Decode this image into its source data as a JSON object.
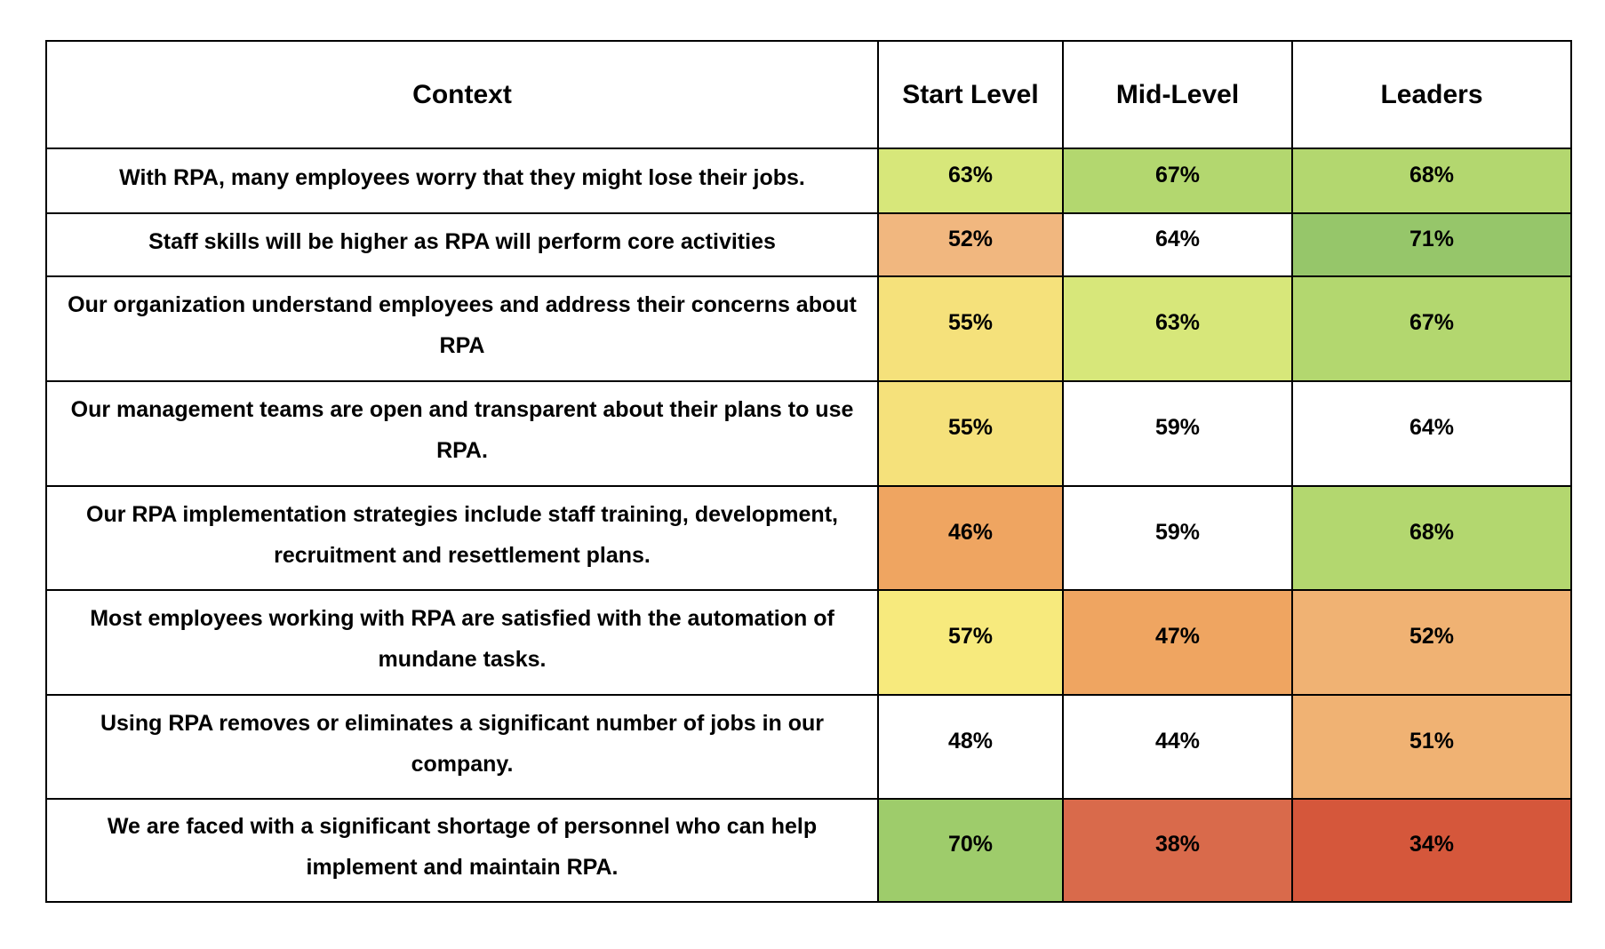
{
  "table": {
    "headers": [
      "Context",
      "Start Level",
      "Mid-Level",
      "Leaders"
    ],
    "rows": [
      {
        "context": "With RPA, many employees worry that they might lose their jobs.",
        "values": [
          "63%",
          "67%",
          "68%"
        ],
        "colors": [
          "#d7e77a",
          "#b3d76f",
          "#b3d76f"
        ]
      },
      {
        "context": "Staff skills will be higher as RPA will perform core activities",
        "values": [
          "52%",
          "64%",
          "71%"
        ],
        "colors": [
          "#f1b77f",
          "#ffffff",
          "#96c66a"
        ]
      },
      {
        "context": "Our organization understand employees and address their concerns about RPA",
        "values": [
          "55%",
          "63%",
          "67%"
        ],
        "colors": [
          "#f5e17b",
          "#d7e77a",
          "#b3d76f"
        ]
      },
      {
        "context": "Our management teams are open and transparent about their plans to use RPA.",
        "values": [
          "55%",
          "59%",
          "64%"
        ],
        "colors": [
          "#f5e17b",
          "#ffffff",
          "#ffffff"
        ]
      },
      {
        "context": "Our RPA implementation strategies include staff training, development, recruitment and resettlement plans.",
        "values": [
          "46%",
          "59%",
          "68%"
        ],
        "colors": [
          "#efa561",
          "#ffffff",
          "#b3d76f"
        ]
      },
      {
        "context": "Most employees working with RPA are satisfied with the automation of mundane tasks.",
        "values": [
          "57%",
          "47%",
          "52%"
        ],
        "colors": [
          "#f7ea7d",
          "#efa561",
          "#f0b273"
        ]
      },
      {
        "context": "Using RPA removes or eliminates a significant number of jobs in our company.",
        "values": [
          "48%",
          "44%",
          "51%"
        ],
        "colors": [
          "#ffffff",
          "#ffffff",
          "#f0b273"
        ]
      },
      {
        "context": "We are faced with a significant shortage of personnel who can help implement and maintain RPA.",
        "values": [
          "70%",
          "38%",
          "34%"
        ],
        "colors": [
          "#9ecc6b",
          "#d96a4b",
          "#d5573b"
        ]
      }
    ]
  }
}
